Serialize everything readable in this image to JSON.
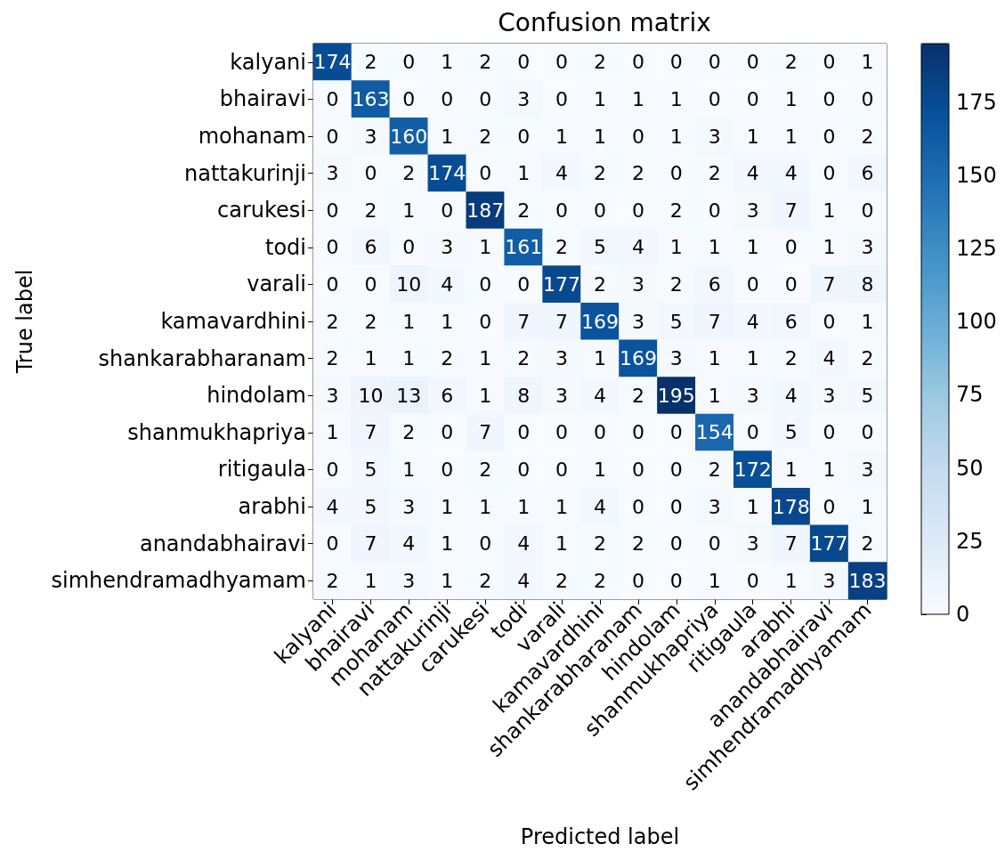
{
  "chart_data": {
    "type": "heatmap",
    "title": "Confusion matrix",
    "xlabel": "Predicted label",
    "ylabel": "True label",
    "categories": [
      "kalyani",
      "bhairavi",
      "mohanam",
      "nattakurinji",
      "carukesi",
      "todi",
      "varali",
      "kamavardhini",
      "shankarabharanam",
      "hindolam",
      "shanmukhapriya",
      "ritigaula",
      "arabhi",
      "anandabhairavi",
      "simhendramadhyamam"
    ],
    "y_categories": [
      "kalyani",
      "bhairavi",
      "mohanam",
      "nattakurinji",
      "carukesi",
      "todi",
      "varali",
      "kamavardhini",
      "shankarabharanam",
      "hindolam",
      "shanmukhapriya",
      "ritigaula",
      "arabhi",
      "anandabhairavi",
      "simhendramadhyamam"
    ],
    "cells": [
      [
        174,
        2,
        0,
        1,
        2,
        0,
        0,
        2,
        0,
        0,
        0,
        0,
        2,
        0,
        1
      ],
      [
        0,
        163,
        0,
        0,
        0,
        3,
        0,
        1,
        1,
        1,
        0,
        0,
        1,
        0,
        0
      ],
      [
        0,
        3,
        160,
        1,
        2,
        0,
        1,
        1,
        0,
        1,
        3,
        1,
        1,
        0,
        2
      ],
      [
        3,
        0,
        2,
        174,
        0,
        1,
        4,
        2,
        2,
        0,
        2,
        4,
        4,
        0,
        6
      ],
      [
        0,
        2,
        1,
        0,
        187,
        2,
        0,
        0,
        0,
        2,
        0,
        3,
        7,
        1,
        0
      ],
      [
        0,
        6,
        0,
        3,
        1,
        161,
        2,
        5,
        4,
        1,
        1,
        1,
        0,
        1,
        3
      ],
      [
        0,
        0,
        10,
        4,
        0,
        0,
        177,
        2,
        3,
        2,
        6,
        0,
        0,
        7,
        8
      ],
      [
        2,
        2,
        1,
        1,
        0,
        7,
        7,
        169,
        3,
        5,
        7,
        4,
        6,
        0,
        1
      ],
      [
        2,
        1,
        1,
        2,
        1,
        2,
        3,
        1,
        169,
        3,
        1,
        1,
        2,
        4,
        2
      ],
      [
        3,
        10,
        13,
        6,
        1,
        8,
        3,
        4,
        2,
        195,
        1,
        3,
        4,
        3,
        5
      ],
      [
        1,
        7,
        2,
        0,
        7,
        0,
        0,
        0,
        0,
        0,
        154,
        0,
        5,
        0,
        0
      ],
      [
        0,
        5,
        1,
        0,
        2,
        0,
        0,
        1,
        0,
        0,
        2,
        172,
        1,
        1,
        3
      ],
      [
        4,
        5,
        3,
        1,
        1,
        1,
        1,
        4,
        0,
        0,
        3,
        1,
        178,
        0,
        1
      ],
      [
        0,
        7,
        4,
        1,
        0,
        4,
        1,
        2,
        2,
        0,
        0,
        3,
        7,
        177,
        2
      ],
      [
        2,
        1,
        3,
        1,
        2,
        4,
        2,
        2,
        0,
        0,
        1,
        0,
        1,
        3,
        183
      ]
    ],
    "clim": [
      0,
      195
    ],
    "cticks": [
      0,
      25,
      50,
      75,
      100,
      125,
      150,
      175
    ],
    "data_labels": true
  }
}
